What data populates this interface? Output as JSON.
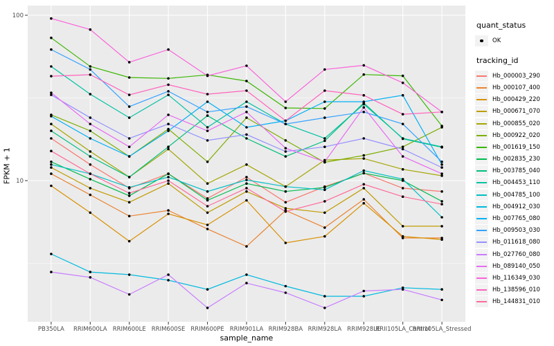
{
  "legend": {
    "quant_status_title": "quant_status",
    "quant_status_value": "OK",
    "tracking_id_title": "tracking_id"
  },
  "axes": {
    "x_title": "sample_name",
    "y_title": "FPKM + 1",
    "y_tick_labels": [
      "100",
      "10"
    ],
    "y_tick_values": [
      100,
      10
    ],
    "y_minor_values": [
      31.623,
      3.1623
    ]
  },
  "style": {
    "panel_background": "#EBEBEB",
    "gridline_color": "#FFFFFF",
    "axis_text_color": "#4D4D4D",
    "point_color": "#000000",
    "legend_key_background": "#F2F2F2"
  },
  "chart_data": {
    "type": "line",
    "title": "",
    "xlabel": "sample_name",
    "ylabel": "FPKM + 1",
    "yscale": "log10",
    "ylim": [
      1.36,
      112
    ],
    "grid": true,
    "legend_position": "right",
    "categories": [
      "PB350LA",
      "RRIM600LA",
      "RRIM600LE",
      "RRIM600SE",
      "RRIM600PE",
      "RRIM901LA",
      "RRIM928BA",
      "RRIM928LA",
      "RRIM928LE",
      "RRII105LA_Control",
      "RRII105LA_Stressed"
    ],
    "quant_status": "OK",
    "series": [
      {
        "name": "Hb_000003_290",
        "color": "#F8766D",
        "values": [
          18,
          12.5,
          9,
          11,
          7.8,
          10.5,
          7.4,
          9.2,
          11.1,
          9.0,
          8.6
        ]
      },
      {
        "name": "Hb_000107_400",
        "color": "#EA8331",
        "values": [
          11,
          8.2,
          6.1,
          6.6,
          5.1,
          4.0,
          6.6,
          5.2,
          7.7,
          4.5,
          4.5
        ]
      },
      {
        "name": "Hb_000429_220",
        "color": "#D89000",
        "values": [
          9.3,
          6.4,
          4.3,
          6.3,
          5.4,
          7.6,
          4.2,
          4.6,
          7.3,
          4.6,
          4.4
        ]
      },
      {
        "name": "Hb_000671_070",
        "color": "#C09B00",
        "values": [
          12,
          9.0,
          7.4,
          9.6,
          6.4,
          8.6,
          6.8,
          6.4,
          9.0,
          5.3,
          5.3
        ]
      },
      {
        "name": "Hb_000855_020",
        "color": "#A3A500",
        "values": [
          22,
          15,
          10.5,
          15.5,
          9.6,
          12.5,
          9.2,
          13.3,
          13.6,
          11.7,
          10.7
        ]
      },
      {
        "name": "Hb_000922_020",
        "color": "#7CAE00",
        "values": [
          25,
          20,
          14,
          20.5,
          13,
          24,
          17.5,
          12.9,
          14.2,
          16,
          21
        ]
      },
      {
        "name": "Hb_001619_150",
        "color": "#39B600",
        "values": [
          73,
          49,
          42,
          41.5,
          43.6,
          40,
          27.5,
          27.3,
          43.8,
          43,
          21.4
        ]
      },
      {
        "name": "Hb_002835_230",
        "color": "#00BB4E",
        "values": [
          13,
          10.2,
          8.1,
          11,
          7.6,
          9.6,
          8.6,
          9.1,
          11.1,
          10,
          7.5
        ]
      },
      {
        "name": "Hb_003785_040",
        "color": "#00BF7D",
        "values": [
          20,
          14,
          10.5,
          16,
          24.7,
          18,
          14,
          17.4,
          29.5,
          17.9,
          15.9
        ]
      },
      {
        "name": "Hb_004453_110",
        "color": "#00C1A3",
        "values": [
          49,
          33.3,
          24,
          33,
          21,
          30,
          22,
          18,
          29,
          18,
          16
        ]
      },
      {
        "name": "Hb_004785_100",
        "color": "#00BFC4",
        "values": [
          12.5,
          11,
          9.1,
          10.5,
          8.6,
          10.1,
          9.2,
          8.8,
          11.5,
          10.2,
          6.0
        ]
      },
      {
        "name": "Hb_004912_030",
        "color": "#00BAE0",
        "values": [
          3.6,
          2.8,
          2.7,
          2.5,
          2.2,
          2.7,
          2.3,
          2.0,
          2.0,
          2.25,
          2.2
        ]
      },
      {
        "name": "Hb_007765_080",
        "color": "#00B0F6",
        "values": [
          24.5,
          18,
          14,
          20,
          30,
          21,
          23,
          30,
          30,
          32.8,
          12.5
        ]
      },
      {
        "name": "Hb_009503_030",
        "color": "#35A2FF",
        "values": [
          62,
          47,
          28,
          34.7,
          26,
          28,
          22,
          24,
          26,
          22,
          13
        ]
      },
      {
        "name": "Hb_011618_080",
        "color": "#9590FF",
        "values": [
          33,
          24,
          18,
          22,
          17.5,
          19,
          15,
          16,
          18,
          15.5,
          12
        ]
      },
      {
        "name": "Hb_027760_080",
        "color": "#C77CFF",
        "values": [
          2.8,
          2.6,
          2.05,
          2.7,
          1.7,
          2.4,
          2.1,
          1.7,
          2.15,
          2.2,
          1.9
        ]
      },
      {
        "name": "Hb_089140_050",
        "color": "#E76BF3",
        "values": [
          34,
          22,
          16,
          25,
          20,
          26,
          15.7,
          13,
          27.7,
          14,
          11
        ]
      },
      {
        "name": "Hb_116349_030",
        "color": "#FA62DB",
        "values": [
          95.6,
          81.9,
          52,
          62,
          43,
          49.5,
          30,
          47,
          49.8,
          39,
          26
        ]
      },
      {
        "name": "Hb_138596_010",
        "color": "#FF62BC",
        "values": [
          42.8,
          43.7,
          33,
          38,
          33.3,
          35,
          23,
          35,
          32.8,
          25.2,
          26
        ]
      },
      {
        "name": "Hb_144831_010",
        "color": "#FF6A98",
        "values": [
          15.1,
          11,
          8.4,
          10,
          7.0,
          9.0,
          6.5,
          7.5,
          9.5,
          8.0,
          7.2
        ]
      }
    ]
  }
}
